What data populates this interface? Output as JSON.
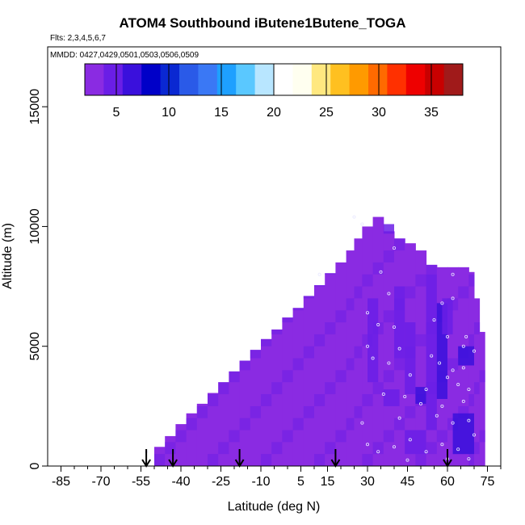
{
  "title": "ATOM4 Southbound iButene1Butene_TOGA",
  "flights_note": "Flts: 2,3,4,5,6,7",
  "mmdd_note": "MMDD: 0427,0429,0501,0503,0506,0509",
  "chart_data": {
    "type": "heatmap",
    "title": "ATOM4 Southbound iButene1Butene_TOGA",
    "xlabel": "Latitude (deg N)",
    "ylabel": "Altitude (m)",
    "xlim": [
      -90,
      80
    ],
    "ylim": [
      0,
      17500
    ],
    "x_ticks": [
      -85,
      -70,
      -55,
      -40,
      -25,
      -10,
      5,
      15,
      30,
      45,
      60,
      75
    ],
    "x_tick_labels": [
      "-85",
      "-70",
      "-55",
      "-40",
      "-25",
      "-10",
      "5",
      "15",
      "30",
      "45",
      "60",
      "75"
    ],
    "y_ticks": [
      0,
      5000,
      10000,
      15000
    ],
    "y_tick_labels": [
      "0",
      "5000",
      "10000",
      "15000"
    ],
    "colorbar": {
      "range": [
        2,
        38
      ],
      "ticks": [
        5,
        10,
        15,
        20,
        25,
        30,
        35
      ],
      "tick_labels": [
        "5",
        "10",
        "15",
        "20",
        "25",
        "30",
        "35"
      ],
      "colors": [
        "#8a2be2",
        "#6a1ee6",
        "#3a10dc",
        "#0000c8",
        "#0a28d2",
        "#2a5ae8",
        "#3a78f5",
        "#1ea0ff",
        "#5ac8ff",
        "#b8e6ff",
        "#ffffff",
        "#fffff0",
        "#ffe880",
        "#ffc020",
        "#ff9a00",
        "#ff6a00",
        "#ff3000",
        "#ee0000",
        "#c80000",
        "#a01a1a"
      ]
    },
    "envelope": {
      "lat": [
        -50,
        -46,
        -42,
        -38,
        -34,
        -30,
        -26,
        -22,
        -18,
        -14,
        -10,
        -6,
        -2,
        2,
        6,
        10,
        14,
        18,
        22,
        25,
        28,
        32,
        36,
        40,
        44,
        48,
        52,
        56,
        60,
        64,
        68,
        70,
        72
      ],
      "top_alt": [
        800,
        1250,
        1750,
        2200,
        2600,
        3050,
        3500,
        3950,
        4400,
        4850,
        5300,
        5700,
        6200,
        6600,
        7100,
        7550,
        8050,
        8500,
        9000,
        9500,
        10000,
        10400,
        9800,
        9500,
        9300,
        9000,
        8400,
        8300,
        8300,
        8300,
        8100,
        7000,
        5600
      ]
    },
    "background_value": 3,
    "dark_regions": [
      {
        "lat": [
          36,
          40
        ],
        "alt": [
          9700,
          10100
        ],
        "value": 5
      },
      {
        "lat": [
          30,
          34
        ],
        "alt": [
          3500,
          7000
        ],
        "value": 4
      },
      {
        "lat": [
          40,
          44
        ],
        "alt": [
          4500,
          7500
        ],
        "value": 5
      },
      {
        "lat": [
          44,
          48
        ],
        "alt": [
          3000,
          6000
        ],
        "value": 5
      },
      {
        "lat": [
          48,
          52
        ],
        "alt": [
          2600,
          3300
        ],
        "value": 6
      },
      {
        "lat": [
          52,
          56
        ],
        "alt": [
          1500,
          8000
        ],
        "value": 5
      },
      {
        "lat": [
          56,
          60
        ],
        "alt": [
          2800,
          6800
        ],
        "value": 6
      },
      {
        "lat": [
          58,
          62
        ],
        "alt": [
          5500,
          7000
        ],
        "value": 4
      },
      {
        "lat": [
          62,
          70
        ],
        "alt": [
          500,
          2200
        ],
        "value": 6
      },
      {
        "lat": [
          64,
          70
        ],
        "alt": [
          4200,
          5000
        ],
        "value": 6
      },
      {
        "lat": [
          36,
          42
        ],
        "alt": [
          2500,
          3200
        ],
        "value": 4
      },
      {
        "lat": [
          44,
          52
        ],
        "alt": [
          500,
          1500
        ],
        "value": 5
      }
    ],
    "sample_points": [
      {
        "lat": 25,
        "alt": 10400
      },
      {
        "lat": 28,
        "alt": 10100
      },
      {
        "lat": 40,
        "alt": 9100
      },
      {
        "lat": 12,
        "alt": 8000
      },
      {
        "lat": 35,
        "alt": 8100
      },
      {
        "lat": 62,
        "alt": 8000
      },
      {
        "lat": 38,
        "alt": 7200
      },
      {
        "lat": 58,
        "alt": 6800
      },
      {
        "lat": 62,
        "alt": 7000
      },
      {
        "lat": 30,
        "alt": 6400
      },
      {
        "lat": 34,
        "alt": 5900
      },
      {
        "lat": 40,
        "alt": 5800
      },
      {
        "lat": 55,
        "alt": 6100
      },
      {
        "lat": 60,
        "alt": 5400
      },
      {
        "lat": 66,
        "alt": 5000
      },
      {
        "lat": 67,
        "alt": 5400
      },
      {
        "lat": 30,
        "alt": 5000
      },
      {
        "lat": 42,
        "alt": 4900
      },
      {
        "lat": 54,
        "alt": 4600
      },
      {
        "lat": 62,
        "alt": 4000
      },
      {
        "lat": 66,
        "alt": 4100
      },
      {
        "lat": 32,
        "alt": 4500
      },
      {
        "lat": 38,
        "alt": 4300
      },
      {
        "lat": 46,
        "alt": 3800
      },
      {
        "lat": 52,
        "alt": 3200
      },
      {
        "lat": 60,
        "alt": 3700
      },
      {
        "lat": 64,
        "alt": 3400
      },
      {
        "lat": 68,
        "alt": 3200
      },
      {
        "lat": 36,
        "alt": 3000
      },
      {
        "lat": 44,
        "alt": 2900
      },
      {
        "lat": 50,
        "alt": 2600
      },
      {
        "lat": 58,
        "alt": 2500
      },
      {
        "lat": 66,
        "alt": 2700
      },
      {
        "lat": 28,
        "alt": 1800
      },
      {
        "lat": 42,
        "alt": 2000
      },
      {
        "lat": 56,
        "alt": 2100
      },
      {
        "lat": 62,
        "alt": 1800
      },
      {
        "lat": 68,
        "alt": 1900
      },
      {
        "lat": 30,
        "alt": 900
      },
      {
        "lat": 34,
        "alt": 600
      },
      {
        "lat": 40,
        "alt": 800
      },
      {
        "lat": 46,
        "alt": 1100
      },
      {
        "lat": 52,
        "alt": 600
      },
      {
        "lat": 58,
        "alt": 900
      },
      {
        "lat": 64,
        "alt": 700
      },
      {
        "lat": 68,
        "alt": 300
      },
      {
        "lat": 60,
        "alt": 300
      },
      {
        "lat": 45,
        "alt": 250
      },
      {
        "lat": -53,
        "alt": 600
      },
      {
        "lat": 70,
        "alt": 1300
      },
      {
        "lat": 70,
        "alt": 4800
      },
      {
        "lat": 57,
        "alt": 4300
      }
    ],
    "arrow_lats": [
      -53,
      -43,
      -18,
      18,
      60
    ]
  }
}
